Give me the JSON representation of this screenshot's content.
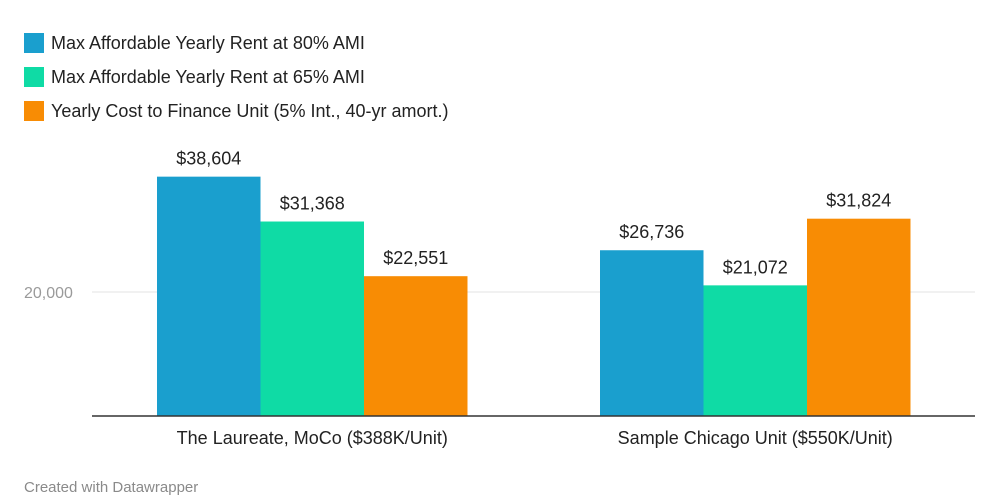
{
  "chart_data": {
    "type": "bar",
    "categories": [
      "The Laureate, MoCo ($388K/Unit)",
      "Sample Chicago Unit ($550K/Unit)"
    ],
    "series": [
      {
        "name": "Max Affordable Yearly Rent at 80% AMI",
        "color": "#1a9fce",
        "values": [
          38604,
          26736
        ],
        "labels": [
          "$38,604",
          "$26,736"
        ]
      },
      {
        "name": "Max Affordable Yearly Rent at 65% AMI",
        "color": "#0fdba5",
        "values": [
          31368,
          21072
        ],
        "labels": [
          "$31,368",
          "$21,072"
        ]
      },
      {
        "name": "Yearly Cost to Finance Unit (5% Int., 40-yr amort.)",
        "color": "#f88c04",
        "values": [
          22551,
          31824
        ],
        "labels": [
          "$22,551",
          "$31,824"
        ]
      }
    ],
    "y_ticks": [
      {
        "value": 20000,
        "label": "20,000"
      }
    ],
    "ylim": [
      0,
      44000
    ],
    "grid": true,
    "legend": "top-left",
    "title": "",
    "xlabel": "",
    "ylabel": ""
  },
  "credit": "Created with Datawrapper"
}
